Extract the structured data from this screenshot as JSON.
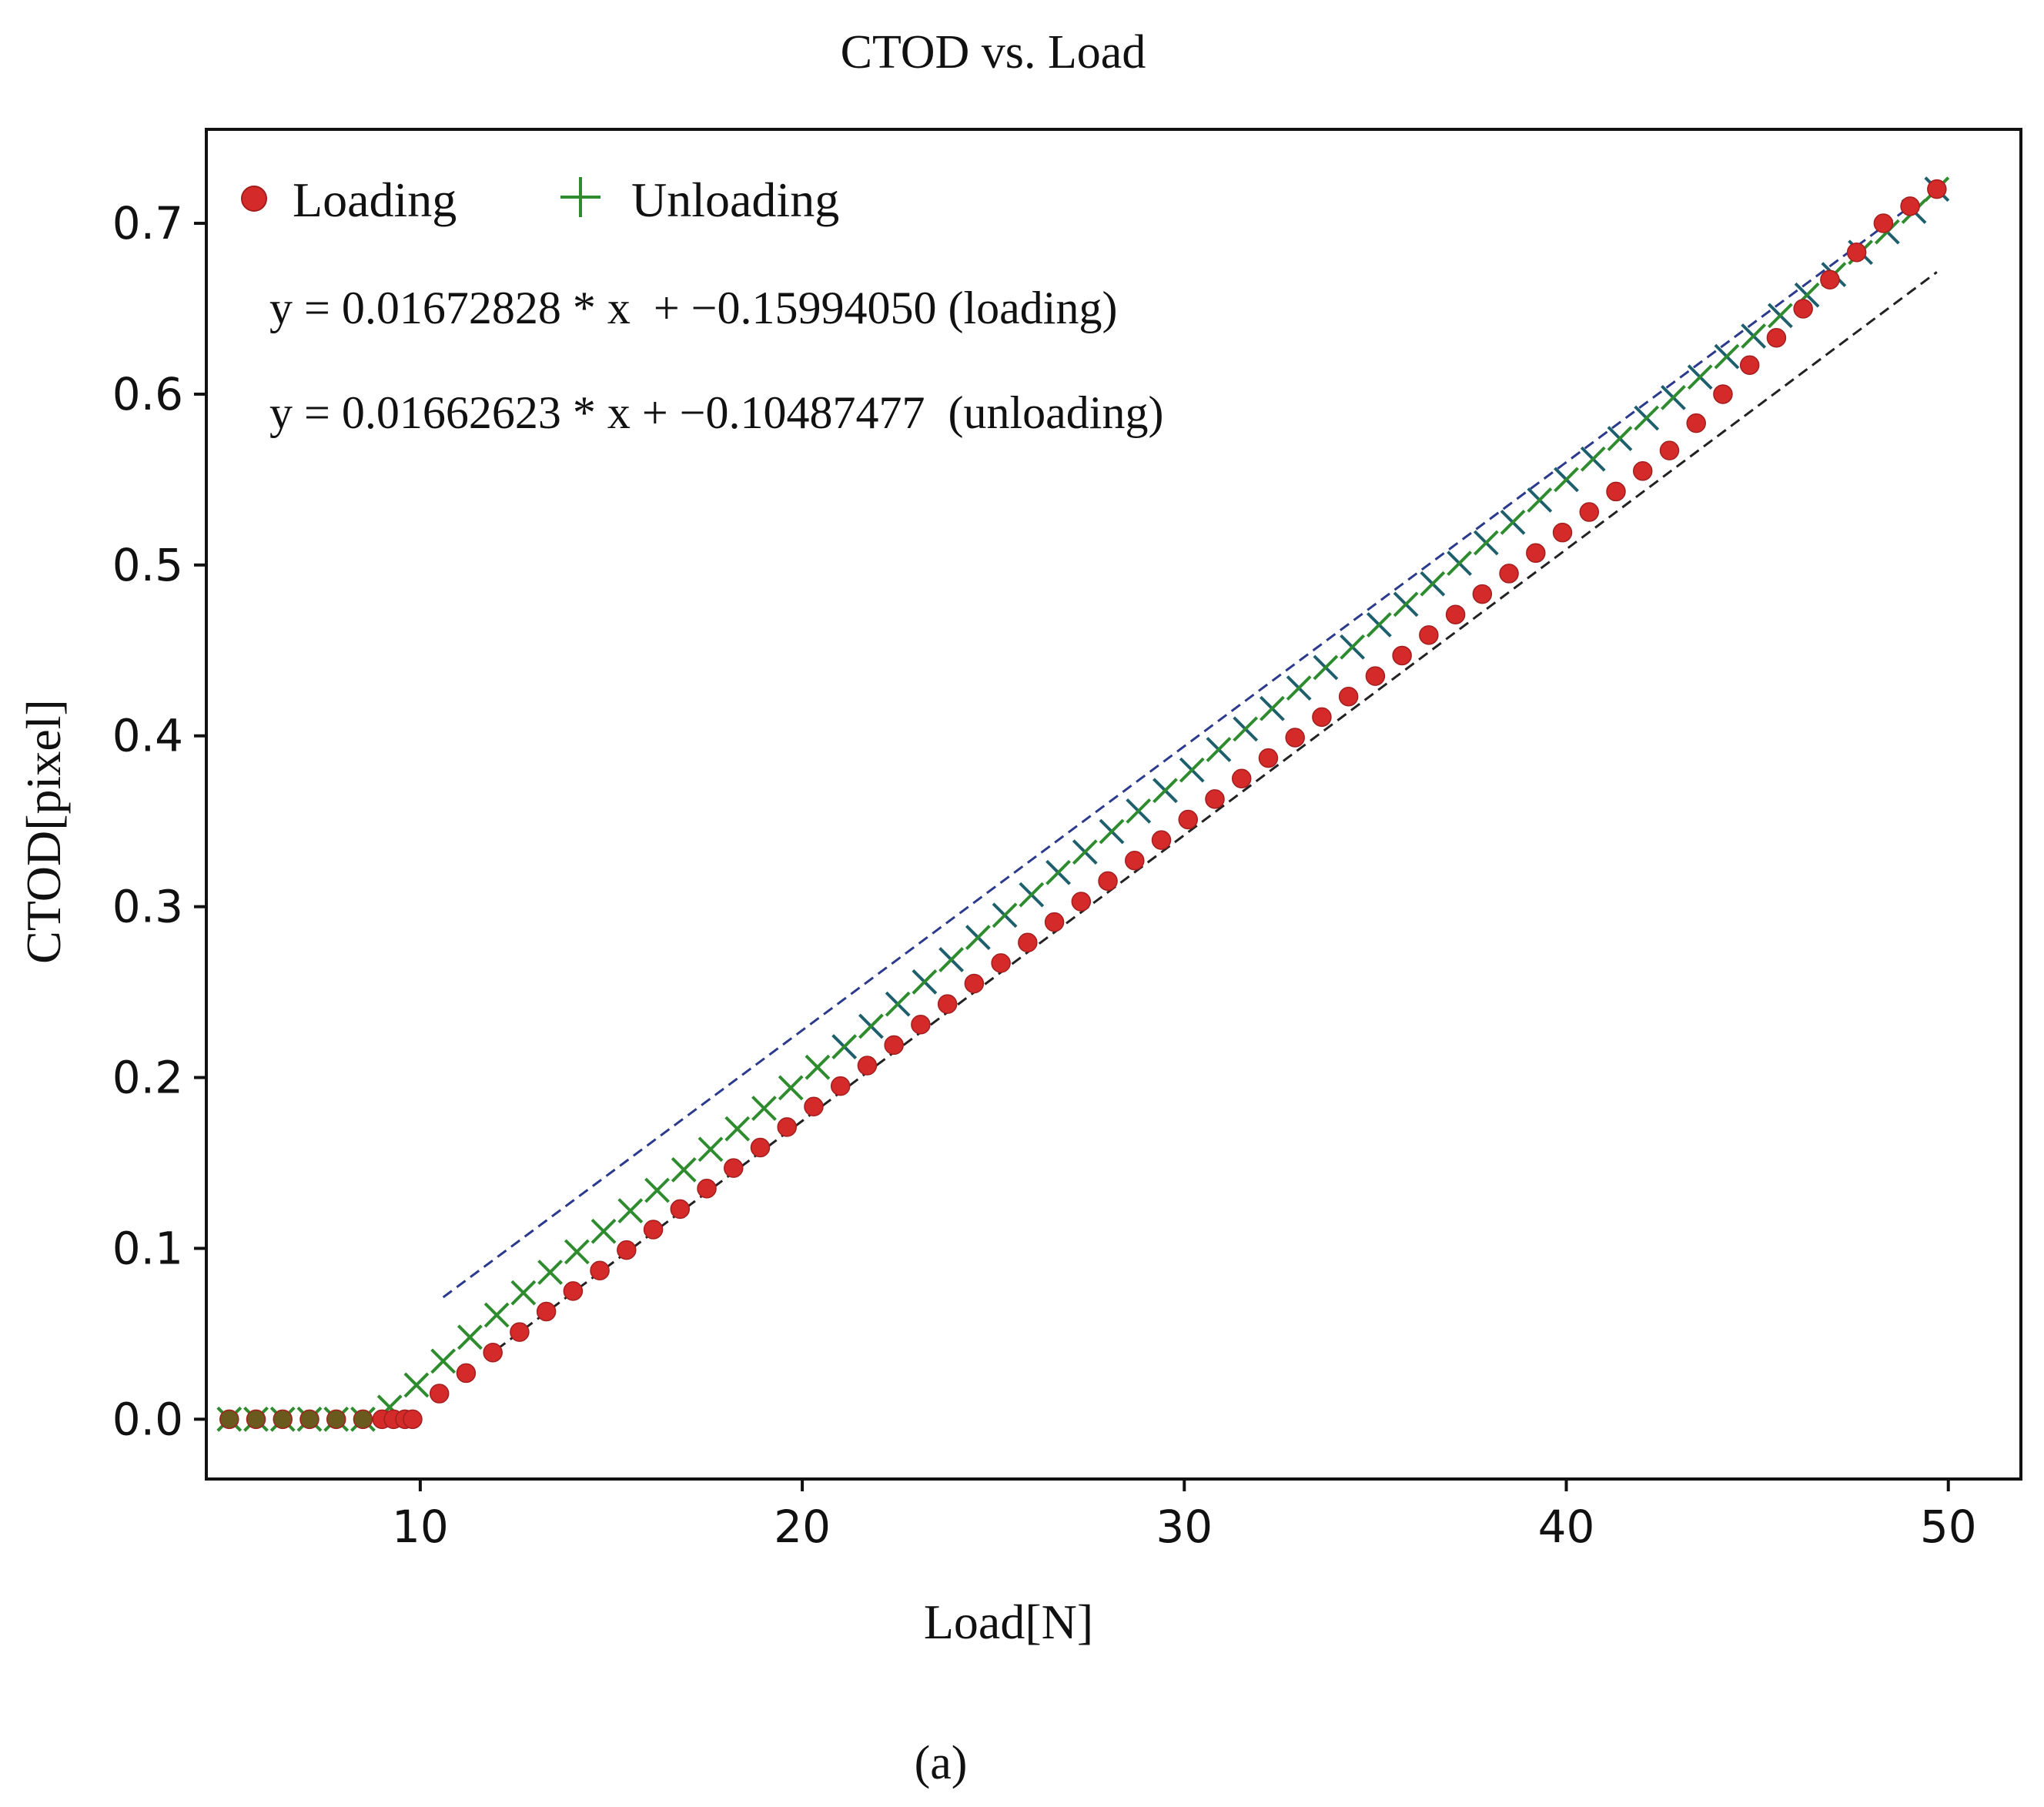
{
  "chart_data": {
    "type": "scatter",
    "title": "CTOD vs. Load",
    "xlabel": "Load[N]",
    "ylabel": "CTOD[pixel]",
    "caption": "(a)",
    "xlim": [
      4.4,
      51.9
    ],
    "ylim": [
      -0.035,
      0.755
    ],
    "xticks": [
      "10",
      "20",
      "30",
      "40",
      "50"
    ],
    "yticks": [
      "0.0",
      "0.1",
      "0.2",
      "0.3",
      "0.4",
      "0.5",
      "0.6",
      "0.7"
    ],
    "legend": {
      "position": "top-left",
      "entries": [
        {
          "label": "Loading",
          "marker": "dot",
          "color": "#d42a2a"
        },
        {
          "label": "Unloading",
          "marker": "plus",
          "color": "#2e8b2e"
        }
      ]
    },
    "annotations": [
      "y = 0.01672828 * x  + −0.15994050 (loading)",
      "y = 0.01662623 * x + −0.10487477  (unloading)"
    ],
    "fit_lines": [
      {
        "name": "loading fit",
        "slope": 0.01672828,
        "intercept": -0.1599405,
        "x_range": [
          12.0,
          49.7
        ],
        "color": "#222222"
      },
      {
        "name": "unloading fit",
        "slope": 0.01662623,
        "intercept": -0.10487477,
        "x_range": [
          10.6,
          49.0
        ],
        "color": "#2b3a8c"
      }
    ],
    "series": [
      {
        "name": "Loading",
        "marker": "dot",
        "color": "#d42a2a",
        "x": [
          5.0,
          5.7,
          6.4,
          7.1,
          7.8,
          8.5,
          9.0,
          9.3,
          9.6,
          9.8,
          10.5,
          11.2,
          11.9,
          12.6,
          13.3,
          14.0,
          14.7,
          15.4,
          16.1,
          16.8,
          17.5,
          18.2,
          18.9,
          19.6,
          20.3,
          21.0,
          21.7,
          22.4,
          23.1,
          23.8,
          24.5,
          25.2,
          25.9,
          26.6,
          27.3,
          28.0,
          28.7,
          29.4,
          30.1,
          30.8,
          31.5,
          32.2,
          32.9,
          33.6,
          34.3,
          35.0,
          35.7,
          36.4,
          37.1,
          37.8,
          38.5,
          39.2,
          39.9,
          40.6,
          41.3,
          42.0,
          42.7,
          43.4,
          44.1,
          44.8,
          45.5,
          46.2,
          46.9,
          47.6,
          48.3,
          49.0,
          49.7
        ],
        "y": [
          0.0,
          0.0,
          0.0,
          0.0,
          0.0,
          0.0,
          0.0,
          0.0,
          0.0,
          0.0,
          0.015,
          0.027,
          0.039,
          0.051,
          0.063,
          0.075,
          0.087,
          0.099,
          0.111,
          0.123,
          0.135,
          0.147,
          0.159,
          0.171,
          0.183,
          0.195,
          0.207,
          0.219,
          0.231,
          0.243,
          0.255,
          0.267,
          0.279,
          0.291,
          0.303,
          0.315,
          0.327,
          0.339,
          0.351,
          0.363,
          0.375,
          0.387,
          0.399,
          0.411,
          0.423,
          0.435,
          0.447,
          0.459,
          0.471,
          0.483,
          0.495,
          0.507,
          0.519,
          0.531,
          0.543,
          0.555,
          0.567,
          0.583,
          0.6,
          0.617,
          0.633,
          0.65,
          0.667,
          0.683,
          0.7,
          0.71,
          0.72
        ]
      },
      {
        "name": "Unloading",
        "marker": "plus",
        "color": "#2e8b2e",
        "x": [
          5.0,
          5.7,
          6.4,
          7.1,
          7.8,
          8.5,
          9.2,
          9.9,
          10.6,
          11.3,
          12.0,
          12.7,
          13.4,
          14.1,
          14.8,
          15.5,
          16.2,
          16.9,
          17.6,
          18.3,
          19.0,
          19.7,
          20.4,
          21.1,
          21.8,
          22.5,
          23.2,
          23.9,
          24.6,
          25.3,
          26.0,
          26.7,
          27.4,
          28.1,
          28.8,
          29.5,
          30.2,
          30.9,
          31.6,
          32.3,
          33.0,
          33.7,
          34.4,
          35.1,
          35.8,
          36.5,
          37.2,
          37.9,
          38.6,
          39.3,
          40.0,
          40.7,
          41.4,
          42.1,
          42.8,
          43.5,
          44.2,
          44.9,
          45.6,
          46.3,
          47.0,
          47.7,
          48.4,
          49.1,
          49.7
        ],
        "y": [
          0.0,
          0.0,
          0.0,
          0.0,
          0.0,
          0.0,
          0.007,
          0.02,
          0.034,
          0.048,
          0.061,
          0.074,
          0.086,
          0.098,
          0.11,
          0.122,
          0.134,
          0.146,
          0.158,
          0.17,
          0.182,
          0.194,
          0.206,
          0.218,
          0.23,
          0.243,
          0.256,
          0.269,
          0.282,
          0.295,
          0.307,
          0.32,
          0.332,
          0.344,
          0.356,
          0.368,
          0.38,
          0.392,
          0.404,
          0.416,
          0.428,
          0.44,
          0.452,
          0.465,
          0.477,
          0.489,
          0.501,
          0.513,
          0.525,
          0.538,
          0.55,
          0.562,
          0.574,
          0.586,
          0.598,
          0.61,
          0.622,
          0.634,
          0.646,
          0.658,
          0.67,
          0.683,
          0.695,
          0.707,
          0.72
        ]
      }
    ]
  }
}
